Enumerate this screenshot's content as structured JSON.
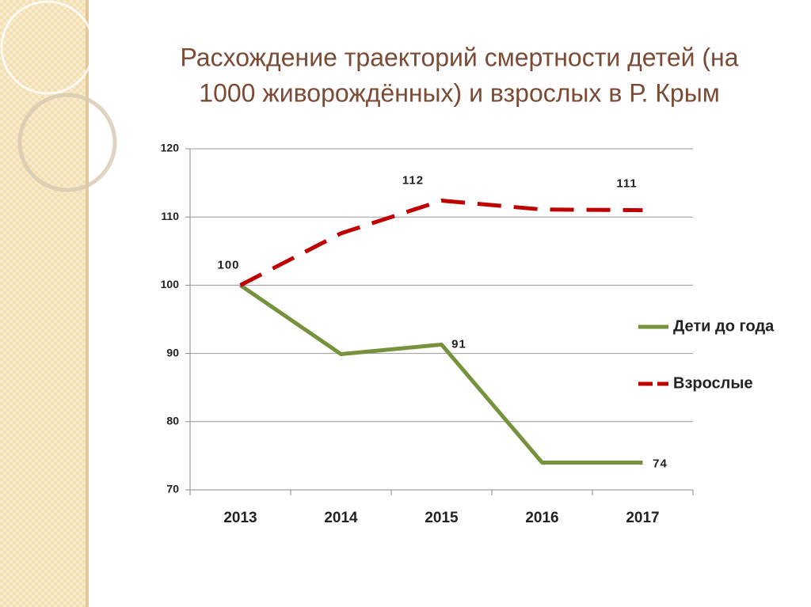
{
  "chart_data": {
    "type": "line",
    "title": [
      "Расхождение траекторий смертности детей (на",
      "1000 живорождённых)  и взрослых в Р. Крым"
    ],
    "categories": [
      "2013",
      "2014",
      "2015",
      "2016",
      "2017"
    ],
    "series": [
      {
        "name": "Дети до года",
        "color": "#76923c",
        "dashed": false,
        "values": [
          100,
          89.9,
          91.3,
          74,
          74
        ],
        "value_labels": [
          "100",
          null,
          "91",
          null,
          "74"
        ]
      },
      {
        "name": "Взрослые",
        "color": "#c00000",
        "dashed": true,
        "values": [
          100,
          107.6,
          112.4,
          111.1,
          111
        ],
        "value_labels": [
          null,
          null,
          "112",
          null,
          "111"
        ]
      }
    ],
    "ylim": [
      70,
      120
    ],
    "yticks": [
      70,
      80,
      90,
      100,
      110,
      120
    ],
    "grid": true,
    "legend": "right"
  }
}
